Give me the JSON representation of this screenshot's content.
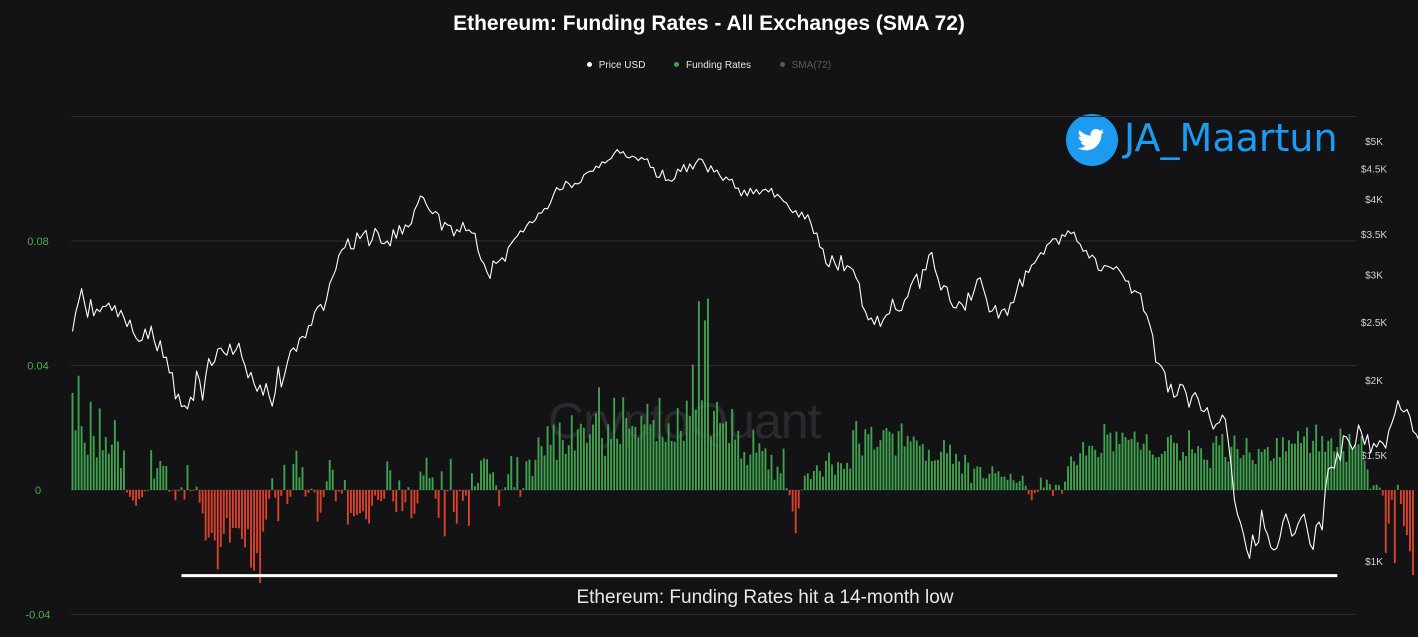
{
  "chart_data": {
    "type": "bar",
    "title": "Ethereum: Funding Rates - All Exchanges (SMA 72)",
    "legend": [
      {
        "name": "Price USD",
        "color": "#ffffff",
        "active": true
      },
      {
        "name": "Funding Rates",
        "color": "#3fa34d",
        "active": true
      },
      {
        "name": "SMA(72)",
        "color": "#5a5a5e",
        "active": false
      }
    ],
    "legend_position": "top-center",
    "grid": true,
    "left_axis": {
      "label": "",
      "ylim": [
        -0.04,
        0.12
      ],
      "ticks": [
        -0.04,
        0,
        0.04,
        0.08
      ],
      "tick_labels": [
        "-0.04",
        "0",
        "0.04",
        "0.08"
      ]
    },
    "right_axis": {
      "label": "",
      "scale": "log",
      "ylim": [
        800,
        6000
      ],
      "ticks": [
        1000,
        1500,
        2000,
        2500,
        3000,
        3500,
        4000,
        4500,
        5000
      ],
      "tick_labels": [
        "$1K",
        "$1.5K",
        "$2K",
        "$2.5K",
        "$3K",
        "$3.5K",
        "$4K",
        "$4.5K",
        "$5K"
      ]
    },
    "x": {
      "count": 425
    },
    "series": [
      {
        "name": "Funding Rates",
        "type": "bar",
        "positive_color": "#3fa34d",
        "negative_color": "#d9412b",
        "values": [
          0.0312,
          0.0192,
          0.0367,
          0.0205,
          0.0152,
          0.0113,
          0.0284,
          0.0174,
          0.0105,
          0.0262,
          0.0128,
          0.017,
          0.0117,
          0.0146,
          0.0224,
          0.0156,
          0.0071,
          0.0127,
          -0.0008,
          -0.0022,
          -0.0034,
          -0.0051,
          -0.0029,
          -0.0023,
          -0.0004,
          0.0,
          0.0128,
          0.0037,
          0.007,
          0.0093,
          0.0078,
          0.0077,
          -0.0006,
          -0.0001,
          -0.0033,
          -0.0004,
          0.0009,
          -0.0031,
          0.008,
          -0.0004,
          -0.0003,
          0.0011,
          -0.0041,
          -0.0075,
          -0.0162,
          -0.0153,
          -0.0138,
          -0.0162,
          -0.0255,
          -0.0183,
          -0.0141,
          -0.009,
          -0.0169,
          -0.0122,
          -0.0122,
          -0.0123,
          -0.0158,
          -0.0185,
          -0.0126,
          -0.0249,
          -0.0259,
          -0.0203,
          -0.0299,
          -0.0134,
          -0.0095,
          -0.0028,
          0.0038,
          -0.0025,
          -0.01,
          -0.0019,
          0.0081,
          -0.0045,
          -0.0022,
          0.0083,
          0.0126,
          0.0041,
          0.0073,
          -0.0021,
          -0.0009,
          0.0004,
          -0.0008,
          -0.0101,
          -0.0073,
          -0.0023,
          0.0028,
          0.0096,
          0.0065,
          -0.0036,
          -0.0005,
          -0.0012,
          0.0032,
          -0.0111,
          -0.0074,
          -0.0084,
          -0.008,
          -0.0075,
          -0.0068,
          -0.0094,
          -0.0108,
          -0.005,
          -0.0018,
          -0.0032,
          -0.0036,
          -0.0028,
          0.0092,
          0.0063,
          -0.0037,
          -0.0071,
          0.0031,
          -0.0068,
          -0.004,
          0.0009,
          -0.0091,
          -0.0076,
          -0.0043,
          0.0059,
          0.0047,
          0.0104,
          0.0038,
          0.004,
          -0.0028,
          -0.0089,
          0.006,
          -0.0149,
          -0.0004,
          0.01,
          -0.0071,
          -0.0108,
          -0.0004,
          -0.0035,
          -0.0018,
          -0.0115,
          0.0054,
          0.0012,
          0.0023,
          0.0095,
          0.0102,
          0.0099,
          0.0052,
          0.0057,
          0.0015,
          -0.0052,
          0.0001,
          0.0009,
          0.0051,
          0.0109,
          0.0009,
          0.0106,
          -0.0022,
          0.0006,
          0.0092,
          0.0098,
          0.0045,
          0.0097,
          0.0169,
          0.0141,
          0.0111,
          0.0205,
          0.0145,
          0.021,
          0.0097,
          0.0217,
          0.0161,
          0.0116,
          0.0144,
          0.024,
          0.0127,
          0.0194,
          0.0213,
          0.02,
          0.0152,
          0.0179,
          0.021,
          0.0246,
          0.033,
          0.0167,
          0.011,
          0.0211,
          0.0164,
          0.0296,
          0.0165,
          0.0148,
          0.0298,
          0.0231,
          0.0197,
          0.0206,
          0.0203,
          0.0168,
          0.0239,
          0.0211,
          0.0277,
          0.0211,
          0.0225,
          0.0157,
          0.0296,
          0.0169,
          0.0155,
          0.0214,
          0.0158,
          0.0155,
          0.0263,
          0.019,
          0.0158,
          0.0287,
          0.0238,
          0.0403,
          0.0257,
          0.0607,
          0.0288,
          0.0545,
          0.0615,
          0.0172,
          0.0254,
          0.0283,
          0.0215,
          0.0214,
          0.022,
          0.0151,
          0.026,
          0.0162,
          0.019,
          0.0101,
          0.0122,
          0.008,
          0.0114,
          0.0194,
          0.012,
          0.015,
          0.0125,
          0.0134,
          0.0066,
          0.0113,
          0.0033,
          0.0075,
          0.0054,
          0.0133,
          0.0006,
          -0.0017,
          -0.0069,
          -0.0139,
          -0.0059,
          0.0001,
          0.0046,
          0.0053,
          0.0035,
          0.0061,
          0.0079,
          0.0061,
          0.0043,
          0.0094,
          0.012,
          0.0082,
          0.0049,
          0.0089,
          0.0086,
          0.0068,
          0.0087,
          0.0069,
          0.0192,
          0.0222,
          0.0149,
          0.0111,
          0.0195,
          0.018,
          0.0203,
          0.013,
          0.0139,
          0.016,
          0.0192,
          0.0199,
          0.0188,
          0.0181,
          0.0111,
          0.0189,
          0.0214,
          0.014,
          0.0174,
          0.0156,
          0.0172,
          0.0159,
          0.0142,
          0.0148,
          0.0094,
          0.0129,
          0.0093,
          0.0095,
          0.0097,
          0.0123,
          0.016,
          0.0118,
          0.0146,
          0.0084,
          0.0116,
          0.0092,
          0.0053,
          0.0113,
          0.0088,
          0.0023,
          0.0069,
          0.0076,
          0.0074,
          0.0038,
          0.0037,
          0.0052,
          0.0076,
          0.0054,
          0.006,
          0.0042,
          0.0043,
          0.0033,
          0.0052,
          0.0031,
          0.0023,
          0.0029,
          0.0046,
          0.0014,
          -0.0014,
          -0.0033,
          -0.001,
          -0.0006,
          0.004,
          0.0008,
          0.0033,
          0.0019,
          -0.0019,
          0.0017,
          0.0015,
          -0.0012,
          0.0027,
          0.0076,
          0.0108,
          0.0092,
          0.008,
          0.0118,
          0.0154,
          0.0111,
          0.0142,
          0.0142,
          0.0129,
          0.0106,
          0.0119,
          0.0212,
          0.0178,
          0.0184,
          0.0124,
          0.0188,
          0.0148,
          0.0184,
          0.017,
          0.0161,
          0.0164,
          0.0188,
          0.0154,
          0.013,
          0.0149,
          0.0179,
          0.0127,
          0.0114,
          0.0104,
          0.0106,
          0.0116,
          0.0125,
          0.017,
          0.0176,
          0.0152,
          0.015,
          0.0095,
          0.0122,
          0.0109,
          0.0192,
          0.0131,
          0.0118,
          0.0141,
          0.0134,
          0.0098,
          0.0097,
          0.0071,
          0.0152,
          0.0174,
          0.0144,
          0.018,
          0.0106,
          0.0091,
          0.0139,
          0.0175,
          0.0132,
          0.0102,
          0.0112,
          0.0167,
          0.0121,
          0.0097,
          0.0083,
          0.0132,
          0.0122,
          0.0131,
          0.0138,
          0.0094,
          0.0102,
          0.0167,
          0.0106,
          0.017,
          0.0124,
          0.016,
          0.0149,
          0.0149,
          0.0189,
          0.0151,
          0.0172,
          0.0201,
          0.0119,
          0.0158,
          0.021,
          0.0124,
          0.0173,
          0.0123,
          0.0158,
          0.0166,
          0.0124,
          0.0138,
          0.0197,
          0.0125,
          0.009,
          0.018,
          0.0135,
          0.0143,
          0.0147,
          0.0174,
          0.0095,
          0.0066,
          0.0004,
          0.0015,
          0.0017,
          0.0008,
          -0.0018,
          -0.0202,
          -0.0108,
          -0.0031,
          -0.0235,
          0.0017,
          -0.0045,
          -0.0116,
          -0.0145,
          -0.0197,
          -0.0273
        ]
      },
      {
        "name": "Price USD",
        "type": "line",
        "color": "#ffffff",
        "values": [
          2410,
          2586,
          2701,
          2839,
          2682,
          2544,
          2723,
          2559,
          2626,
          2599,
          2652,
          2654,
          2687,
          2612,
          2661,
          2548,
          2613,
          2541,
          2455,
          2518,
          2404,
          2349,
          2319,
          2332,
          2432,
          2343,
          2460,
          2327,
          2237,
          2326,
          2183,
          2184,
          2057,
          2058,
          1861,
          1896,
          1807,
          1814,
          1791,
          1874,
          1850,
          2071,
          1997,
          1852,
          2030,
          2173,
          2116,
          2149,
          2253,
          2261,
          2223,
          2200,
          2296,
          2208,
          2245,
          2305,
          2183,
          2115,
          2017,
          2060,
          1973,
          1916,
          1963,
          1887,
          1974,
          1879,
          1810,
          1909,
          2106,
          1948,
          2034,
          2139,
          2235,
          2263,
          2233,
          2345,
          2365,
          2352,
          2463,
          2470,
          2594,
          2646,
          2673,
          2612,
          2732,
          2896,
          2973,
          3052,
          3225,
          3293,
          3323,
          3437,
          3308,
          3308,
          3516,
          3440,
          3501,
          3551,
          3346,
          3422,
          3577,
          3515,
          3381,
          3373,
          3408,
          3345,
          3559,
          3443,
          3617,
          3500,
          3626,
          3598,
          3645,
          3837,
          3926,
          4050,
          4023,
          3913,
          3831,
          3785,
          3818,
          3776,
          3553,
          3659,
          3623,
          3614,
          3475,
          3561,
          3528,
          3662,
          3545,
          3556,
          3514,
          3511,
          3285,
          3171,
          3123,
          3023,
          2953,
          3158,
          3127,
          3158,
          3197,
          3154,
          3325,
          3376,
          3433,
          3474,
          3544,
          3528,
          3610,
          3670,
          3656,
          3696,
          3794,
          3794,
          3862,
          3856,
          3949,
          4076,
          4184,
          4145,
          4160,
          4285,
          4250,
          4181,
          4249,
          4242,
          4271,
          4393,
          4429,
          4453,
          4451,
          4540,
          4516,
          4617,
          4597,
          4643,
          4674,
          4767,
          4837,
          4770,
          4801,
          4705,
          4686,
          4719,
          4695,
          4639,
          4694,
          4658,
          4667,
          4520,
          4519,
          4355,
          4350,
          4472,
          4298,
          4309,
          4285,
          4328,
          4491,
          4447,
          4569,
          4443,
          4581,
          4490,
          4596,
          4670,
          4660,
          4562,
          4440,
          4547,
          4439,
          4473,
          4373,
          4299,
          4356,
          4304,
          4317,
          4172,
          4175,
          4051,
          4143,
          4051,
          4172,
          4084,
          4152,
          4078,
          4137,
          4158,
          4113,
          4169,
          4032,
          4076,
          4026,
          3967,
          3943,
          3857,
          3799,
          3829,
          3734,
          3809,
          3708,
          3770,
          3652,
          3506,
          3514,
          3329,
          3306,
          3127,
          3087,
          3222,
          3125,
          3048,
          3225,
          3040,
          3100,
          3082,
          3051,
          2956,
          2896,
          2655,
          2603,
          2519,
          2538,
          2475,
          2556,
          2457,
          2525,
          2568,
          2582,
          2729,
          2625,
          2606,
          2612,
          2717,
          2754,
          2873,
          2946,
          3003,
          2842,
          3055,
          3050,
          3227,
          3262,
          3058,
          2953,
          2824,
          2873,
          2856,
          2708,
          2645,
          2636,
          2702,
          2673,
          2614,
          2794,
          2716,
          2819,
          2941,
          2961,
          2841,
          2732,
          2597,
          2609,
          2662,
          2534,
          2611,
          2628,
          2563,
          2688,
          2692,
          2813,
          2946,
          2863,
          3039,
          3021,
          3110,
          3134,
          3200,
          3261,
          3239,
          3356,
          3385,
          3436,
          3438,
          3365,
          3492,
          3469,
          3545,
          3506,
          3526,
          3403,
          3366,
          3277,
          3288,
          3193,
          3229,
          3188,
          3050,
          3040,
          3103,
          3095,
          3081,
          3059,
          3091,
          3045,
          2993,
          2925,
          2922,
          2790,
          2819,
          2798,
          2787,
          2609,
          2567,
          2474,
          2372,
          2144,
          2130,
          2103,
          2059,
          1910,
          1969,
          1873,
          1886,
          1968,
          1961,
          1904,
          1803,
          1879,
          1907,
          1861,
          1782,
          1772,
          1800,
          1719,
          1658,
          1690,
          1700,
          1750,
          1720,
          1575,
          1424,
          1264,
          1195,
          1158,
          1108,
          1046,
          1010,
          1105,
          1060,
          1075,
          1215,
          1134,
          1105,
          1054,
          1043,
          1050,
          1092,
          1161,
          1198,
          1155,
          1100,
          1112,
          1152,
          1181,
          1197,
          1133,
          1066,
          1045,
          1146,
          1161,
          1126,
          1309,
          1422,
          1433,
          1427,
          1516,
          1470,
          1616,
          1608,
          1575,
          1533,
          1564,
          1684,
          1634,
          1562,
          1623,
          1513,
          1570,
          1548,
          1586,
          1572,
          1541,
          1647,
          1696,
          1755,
          1849,
          1787,
          1770,
          1788,
          1739,
          1644,
          1626,
          1589,
          1613,
          1586,
          1526,
          1508
        ]
      }
    ],
    "annotations": [
      {
        "type": "horizontal-line",
        "color": "#ffffff",
        "from_index": 36,
        "to_index": 418,
        "y": -0.0275
      },
      {
        "type": "text",
        "text": "Ethereum: Funding Rates hit a 14-month low"
      }
    ],
    "watermark": "CryptoQuant",
    "brand": {
      "icon": "twitter-bird-icon",
      "handle": "JA_Maartun",
      "color": "#1d9bf0"
    }
  }
}
